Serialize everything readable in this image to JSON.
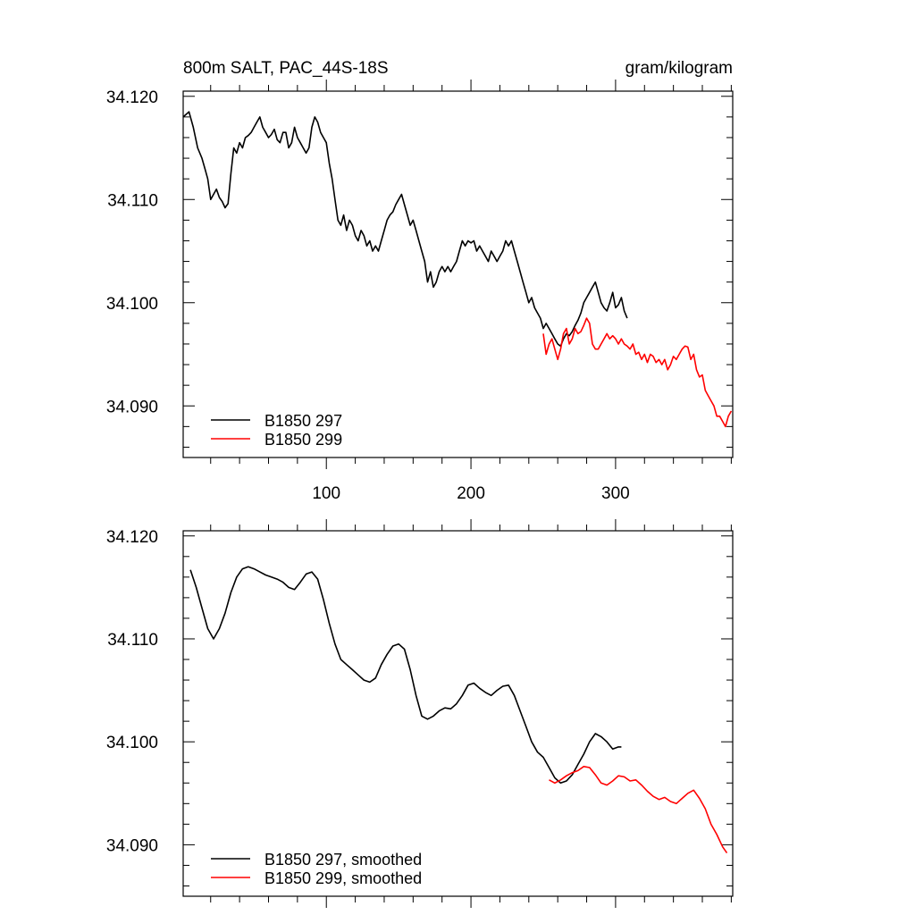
{
  "colors": {
    "series_297": "#000000",
    "series_299": "#ff0000",
    "frame": "#000000"
  },
  "chart_data": [
    {
      "type": "line",
      "title": "800m SALT, PAC_44S-18S",
      "units": "gram/kilogram",
      "xlim": [
        1,
        381
      ],
      "ylim": [
        34.085,
        34.1205
      ],
      "xticks": [
        100,
        200,
        300
      ],
      "xtick_labels": [
        "100",
        "200",
        "300"
      ],
      "yticks": [
        34.09,
        34.1,
        34.11,
        34.12
      ],
      "ytick_labels": [
        "34.090",
        "34.100",
        "34.110",
        "34.120"
      ],
      "grid": false,
      "legend_position": "bottom-left",
      "series": [
        {
          "name": "B1850 297",
          "color": "#000000",
          "x": [
            1,
            5,
            8,
            11,
            14,
            16,
            18,
            20,
            22,
            24,
            26,
            28,
            30,
            32,
            34,
            36,
            38,
            40,
            42,
            44,
            46,
            48,
            50,
            52,
            54,
            56,
            58,
            60,
            62,
            64,
            66,
            68,
            70,
            72,
            74,
            76,
            78,
            80,
            82,
            84,
            86,
            88,
            90,
            92,
            94,
            96,
            98,
            100,
            102,
            104,
            106,
            108,
            110,
            112,
            114,
            116,
            118,
            120,
            122,
            124,
            126,
            128,
            130,
            132,
            134,
            136,
            138,
            140,
            142,
            144,
            146,
            148,
            150,
            152,
            154,
            156,
            158,
            160,
            162,
            164,
            166,
            168,
            170,
            172,
            174,
            176,
            178,
            180,
            182,
            184,
            186,
            188,
            190,
            192,
            194,
            196,
            198,
            200,
            202,
            204,
            206,
            208,
            210,
            212,
            214,
            216,
            218,
            220,
            222,
            224,
            226,
            228,
            230,
            232,
            234,
            236,
            238,
            240,
            242,
            244,
            246,
            248,
            250,
            252,
            254,
            256,
            258,
            260,
            262,
            264,
            266,
            268,
            270,
            272,
            274,
            276,
            278,
            280,
            282,
            284,
            286,
            288,
            290,
            292,
            294,
            296,
            298,
            300,
            302,
            304,
            306,
            308
          ],
          "values": [
            34.118,
            34.1185,
            34.117,
            34.115,
            34.114,
            34.113,
            34.112,
            34.11,
            34.1105,
            34.111,
            34.1102,
            34.1098,
            34.1092,
            34.1096,
            34.1125,
            34.115,
            34.1145,
            34.1155,
            34.115,
            34.116,
            34.1162,
            34.1165,
            34.117,
            34.1175,
            34.118,
            34.117,
            34.1165,
            34.116,
            34.1163,
            34.1168,
            34.1158,
            34.1155,
            34.1165,
            34.1165,
            34.115,
            34.1155,
            34.117,
            34.116,
            34.1155,
            34.115,
            34.1145,
            34.115,
            34.117,
            34.118,
            34.1175,
            34.1165,
            34.116,
            34.1155,
            34.1135,
            34.112,
            34.11,
            34.108,
            34.1075,
            34.1085,
            34.107,
            34.108,
            34.1075,
            34.1065,
            34.106,
            34.107,
            34.1065,
            34.1055,
            34.106,
            34.105,
            34.1055,
            34.105,
            34.106,
            34.107,
            34.108,
            34.1085,
            34.1088,
            34.1095,
            34.11,
            34.1105,
            34.1095,
            34.1085,
            34.1075,
            34.108,
            34.107,
            34.106,
            34.105,
            34.104,
            34.102,
            34.103,
            34.1015,
            34.102,
            34.103,
            34.1035,
            34.103,
            34.1035,
            34.103,
            34.1035,
            34.104,
            34.105,
            34.106,
            34.1055,
            34.106,
            34.1058,
            34.106,
            34.105,
            34.1055,
            34.105,
            34.1045,
            34.104,
            34.105,
            34.1045,
            34.104,
            34.1045,
            34.105,
            34.106,
            34.1055,
            34.106,
            34.105,
            34.104,
            34.103,
            34.102,
            34.101,
            34.1,
            34.1005,
            34.0995,
            34.099,
            34.0985,
            34.0975,
            34.098,
            34.0975,
            34.097,
            34.0965,
            34.096,
            34.0958,
            34.0965,
            34.097,
            34.0968,
            34.0972,
            34.0978,
            34.0983,
            34.099,
            34.1,
            34.1005,
            34.101,
            34.1015,
            34.102,
            34.101,
            34.1,
            34.0995,
            34.0992,
            34.1,
            34.101,
            34.0995,
            34.0998,
            34.1005,
            34.0992,
            34.0985
          ]
        },
        {
          "name": "B1850 299",
          "color": "#ff0000",
          "x": [
            250,
            252,
            254,
            256,
            258,
            260,
            262,
            264,
            266,
            268,
            270,
            272,
            274,
            276,
            278,
            280,
            282,
            284,
            286,
            288,
            290,
            292,
            294,
            296,
            298,
            300,
            302,
            304,
            306,
            308,
            310,
            312,
            314,
            316,
            318,
            320,
            322,
            324,
            326,
            328,
            330,
            332,
            334,
            336,
            338,
            340,
            342,
            344,
            346,
            348,
            350,
            352,
            354,
            356,
            358,
            360,
            362,
            364,
            366,
            368,
            370,
            372,
            374,
            376,
            378,
            380
          ],
          "values": [
            34.097,
            34.095,
            34.096,
            34.0965,
            34.0955,
            34.0945,
            34.0955,
            34.097,
            34.0975,
            34.096,
            34.0965,
            34.0975,
            34.097,
            34.0972,
            34.0978,
            34.0985,
            34.098,
            34.096,
            34.0955,
            34.0955,
            34.096,
            34.0965,
            34.097,
            34.0965,
            34.0968,
            34.0965,
            34.096,
            34.0965,
            34.096,
            34.0958,
            34.0955,
            34.096,
            34.095,
            34.0952,
            34.0945,
            34.095,
            34.0942,
            34.095,
            34.0948,
            34.0942,
            34.0945,
            34.094,
            34.0945,
            34.0935,
            34.094,
            34.0948,
            34.0945,
            34.095,
            34.0955,
            34.0958,
            34.0957,
            34.0945,
            34.095,
            34.0935,
            34.0928,
            34.093,
            34.0915,
            34.091,
            34.0905,
            34.09,
            34.089,
            34.089,
            34.0885,
            34.088,
            34.089,
            34.0895
          ]
        }
      ]
    },
    {
      "type": "line",
      "title": "",
      "units": "",
      "xlim": [
        1,
        381
      ],
      "ylim": [
        34.085,
        34.1205
      ],
      "xticks": [
        100,
        200,
        300
      ],
      "xtick_labels": [],
      "yticks": [
        34.09,
        34.1,
        34.11,
        34.12
      ],
      "ytick_labels": [
        "34.090",
        "34.100",
        "34.110",
        "34.120"
      ],
      "grid": false,
      "legend_position": "bottom-left",
      "series": [
        {
          "name": "B1850 297, smoothed",
          "color": "#000000",
          "x": [
            6,
            10,
            14,
            18,
            22,
            26,
            30,
            34,
            38,
            42,
            46,
            50,
            54,
            58,
            62,
            66,
            70,
            74,
            78,
            82,
            86,
            90,
            94,
            98,
            102,
            106,
            110,
            114,
            118,
            122,
            126,
            130,
            134,
            138,
            142,
            146,
            150,
            154,
            158,
            162,
            166,
            170,
            174,
            178,
            182,
            186,
            190,
            194,
            198,
            202,
            206,
            210,
            214,
            218,
            222,
            226,
            230,
            234,
            238,
            242,
            246,
            250,
            254,
            258,
            262,
            266,
            270,
            274,
            278,
            282,
            286,
            290,
            294,
            298,
            302,
            304
          ],
          "values": [
            34.1167,
            34.115,
            34.113,
            34.111,
            34.11,
            34.111,
            34.1125,
            34.1145,
            34.116,
            34.1168,
            34.117,
            34.1168,
            34.1165,
            34.1162,
            34.116,
            34.1158,
            34.1155,
            34.115,
            34.1148,
            34.1155,
            34.1163,
            34.1165,
            34.1158,
            34.1138,
            34.1115,
            34.1095,
            34.108,
            34.1075,
            34.107,
            34.1065,
            34.106,
            34.1058,
            34.1062,
            34.1075,
            34.1085,
            34.1093,
            34.1095,
            34.109,
            34.107,
            34.1045,
            34.1025,
            34.1022,
            34.1025,
            34.103,
            34.1033,
            34.1032,
            34.1037,
            34.1045,
            34.1055,
            34.1057,
            34.1052,
            34.1048,
            34.1045,
            34.105,
            34.1054,
            34.1055,
            34.1045,
            34.103,
            34.1015,
            34.1,
            34.099,
            34.0985,
            34.0975,
            34.0965,
            34.096,
            34.0962,
            34.0968,
            34.0978,
            34.0988,
            34.1,
            34.1008,
            34.1005,
            34.1,
            34.0993,
            34.0995,
            34.0995
          ]
        },
        {
          "name": "B1850 299, smoothed",
          "color": "#ff0000",
          "x": [
            254,
            258,
            262,
            266,
            270,
            274,
            278,
            282,
            286,
            290,
            294,
            298,
            302,
            306,
            310,
            314,
            318,
            322,
            326,
            330,
            334,
            338,
            342,
            346,
            350,
            354,
            358,
            362,
            366,
            370,
            374,
            377
          ],
          "values": [
            34.0963,
            34.096,
            34.0963,
            34.0967,
            34.097,
            34.0972,
            34.0976,
            34.0975,
            34.0968,
            34.096,
            34.0958,
            34.0962,
            34.0967,
            34.0966,
            34.0962,
            34.0963,
            34.0958,
            34.0952,
            34.0947,
            34.0944,
            34.0946,
            34.0942,
            34.094,
            34.0945,
            34.095,
            34.0953,
            34.0945,
            34.0935,
            34.092,
            34.091,
            34.0898,
            34.0892
          ]
        }
      ]
    }
  ]
}
